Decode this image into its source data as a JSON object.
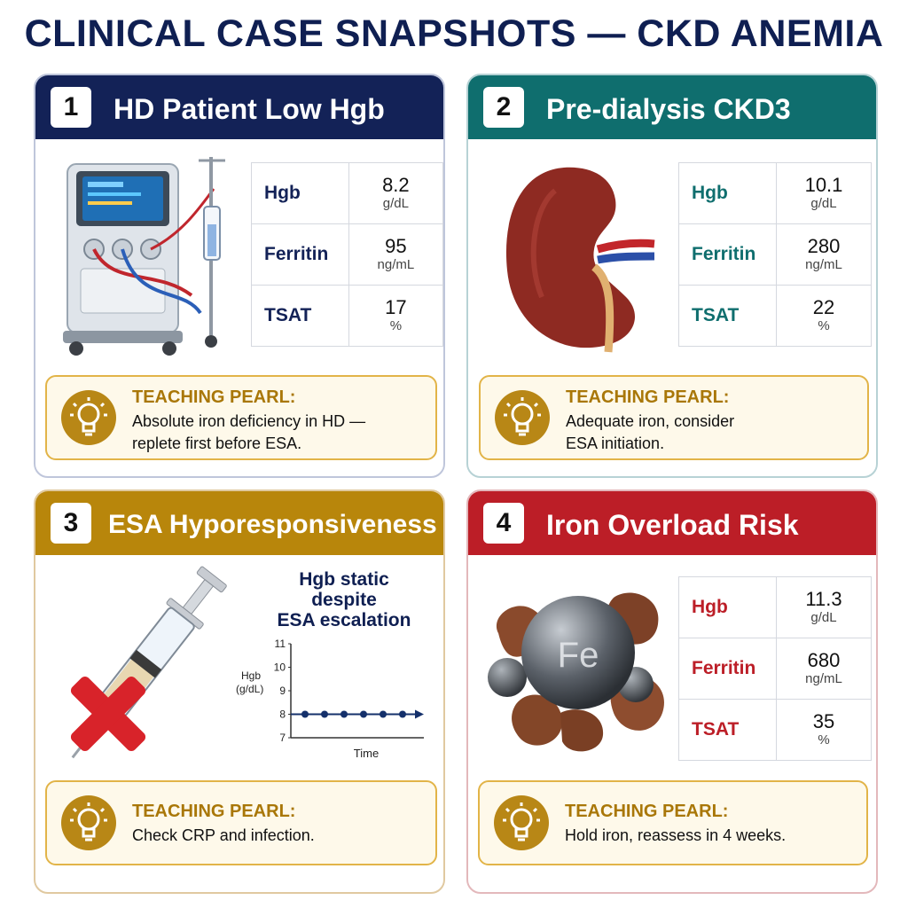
{
  "title": "CLINICAL CASE SNAPSHOTS — CKD ANEMIA",
  "cases": [
    {
      "number": "1",
      "title": "HD Patient Low Hgb",
      "illustration_icon": "dialysis-machine-icon",
      "labs": [
        {
          "name": "Hgb",
          "value": "8.2",
          "unit": "g/dL"
        },
        {
          "name": "Ferritin",
          "value": "95",
          "unit": "ng/mL"
        },
        {
          "name": "TSAT",
          "value": "17",
          "unit": "%"
        }
      ],
      "pearl_title": "TEACHING PEARL:",
      "pearl_lines": [
        "Absolute iron deficiency in HD —",
        "replete first before ESA."
      ],
      "accent": "#132257"
    },
    {
      "number": "2",
      "title": "Pre-dialysis CKD3",
      "illustration_icon": "kidney-icon",
      "labs": [
        {
          "name": "Hgb",
          "value": "10.1",
          "unit": "g/dL"
        },
        {
          "name": "Ferritin",
          "value": "280",
          "unit": "ng/mL"
        },
        {
          "name": "TSAT",
          "value": "22",
          "unit": "%"
        }
      ],
      "pearl_title": "TEACHING PEARL:",
      "pearl_lines": [
        "Adequate iron, consider",
        "ESA initiation."
      ],
      "accent": "#0f6e6e"
    },
    {
      "number": "3",
      "title": "ESA Hyporesponsiveness",
      "illustration_icon": "syringe-with-red-x-icon",
      "chart_caption": [
        "Hgb static",
        "despite",
        "ESA escalation"
      ],
      "pearl_title": "TEACHING PEARL:",
      "pearl_lines": [
        "Check CRP and infection."
      ],
      "accent": "#b8860b"
    },
    {
      "number": "4",
      "title": "Iron Overload Risk",
      "illustration_icon": "iron-sphere-icon",
      "illustration_label": "Fe",
      "labs": [
        {
          "name": "Hgb",
          "value": "11.3",
          "unit": "g/dL"
        },
        {
          "name": "Ferritin",
          "value": "680",
          "unit": "ng/mL"
        },
        {
          "name": "TSAT",
          "value": "35",
          "unit": "%"
        }
      ],
      "pearl_title": "TEACHING PEARL:",
      "pearl_lines": [
        "Hold iron, reassess in 4 weeks."
      ],
      "accent": "#bc1e27"
    }
  ],
  "chart_data": {
    "type": "line",
    "title": "",
    "xlabel": "Time",
    "ylabel": "Hgb (g/dL)",
    "yticks": [
      7,
      8,
      9,
      10,
      11
    ],
    "ylim": [
      7,
      11
    ],
    "x": [
      1,
      2,
      3,
      4,
      5,
      6
    ],
    "series": [
      {
        "values": [
          8,
          8,
          8,
          8,
          8,
          8
        ]
      }
    ],
    "color": "#14306b",
    "grid": false
  },
  "icons": {
    "pearl": "lightbulb-icon"
  }
}
